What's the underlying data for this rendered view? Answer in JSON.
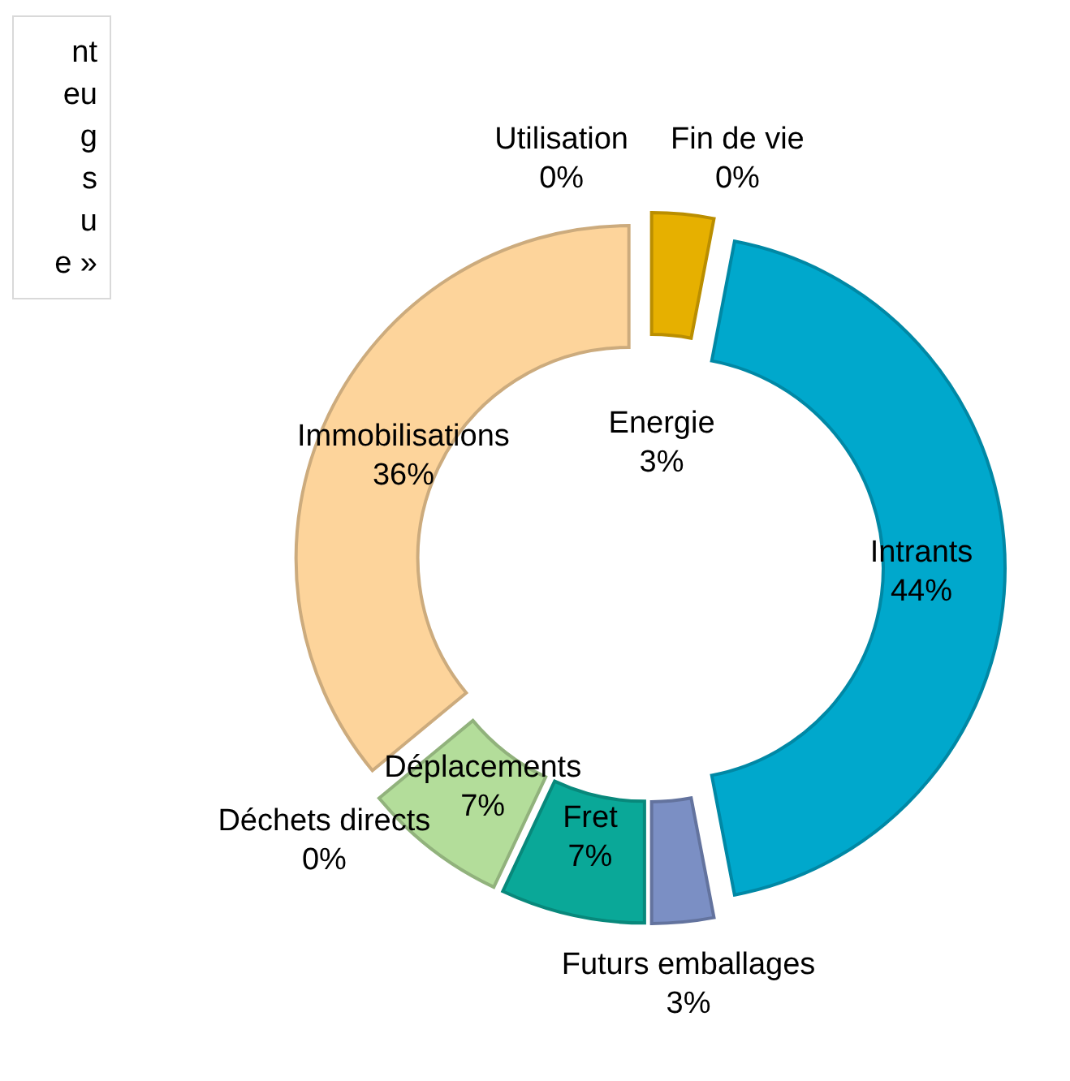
{
  "chart_data": {
    "type": "donut",
    "categories": [
      "Energie",
      "Intrants",
      "Futurs emballages",
      "Fret",
      "Déplacements",
      "Déchets directs",
      "Immobilisations",
      "Utilisation",
      "Fin de vie"
    ],
    "values": [
      3,
      44,
      3,
      7,
      7,
      0,
      36,
      0,
      0
    ],
    "colors": [
      "#e6b000",
      "#00a8cc",
      "#7b8fc4",
      "#0aa898",
      "#b3dd9a",
      "#c0504d",
      "#fdd49b",
      "#9bbb59",
      "#8064a2"
    ],
    "value_labels": [
      "3%",
      "44%",
      "3%",
      "7%",
      "7%",
      "0%",
      "36%",
      "0%",
      "0%"
    ],
    "annotations": [
      "nt",
      "eu",
      "g",
      "s",
      "u",
      "e »"
    ]
  }
}
